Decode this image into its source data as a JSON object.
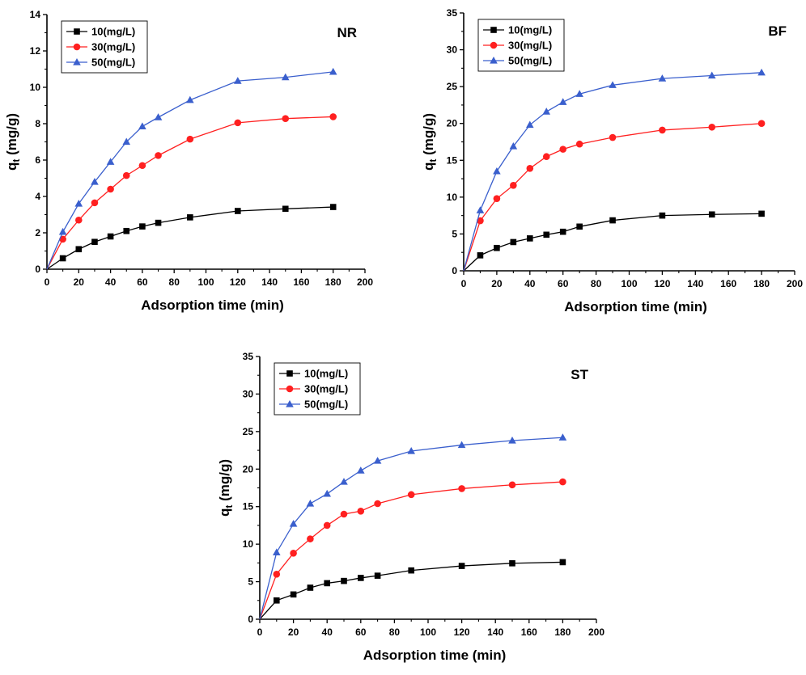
{
  "chart_data": [
    {
      "type": "line",
      "panel_label": "NR",
      "xlabel": "Adsorption time (min)",
      "ylabel_main": "q",
      "ylabel_sub": "t",
      "ylabel_unit": " (mg/g)",
      "xlim": [
        0,
        200
      ],
      "ylim": [
        0,
        14
      ],
      "xticks": [
        0,
        20,
        40,
        60,
        80,
        100,
        120,
        140,
        160,
        180,
        200
      ],
      "yticks": [
        0,
        2,
        4,
        6,
        8,
        10,
        12,
        14
      ],
      "legend_position": "top-left",
      "grid": false,
      "series": [
        {
          "name": "10(mg/L)",
          "marker": "square",
          "color": "#000000",
          "line_color": "#000000",
          "x": [
            0,
            10,
            20,
            30,
            40,
            50,
            60,
            70,
            90,
            120,
            150,
            180
          ],
          "y": [
            0,
            0.6,
            1.1,
            1.5,
            1.8,
            2.1,
            2.35,
            2.55,
            2.85,
            3.2,
            3.32,
            3.42
          ]
        },
        {
          "name": "30(mg/L)",
          "marker": "circle",
          "color": "#ff2020",
          "line_color": "#ff2020",
          "x": [
            0,
            10,
            20,
            30,
            40,
            50,
            60,
            70,
            90,
            120,
            150,
            180
          ],
          "y": [
            0,
            1.65,
            2.7,
            3.65,
            4.4,
            5.15,
            5.7,
            6.25,
            7.15,
            8.05,
            8.28,
            8.38
          ]
        },
        {
          "name": "50(mg/L)",
          "marker": "triangle",
          "color": "#3a5fcd",
          "line_color": "#3a5fcd",
          "x": [
            0,
            10,
            20,
            30,
            40,
            50,
            60,
            70,
            90,
            120,
            150,
            180
          ],
          "y": [
            0,
            2.05,
            3.6,
            4.8,
            5.9,
            7.0,
            7.85,
            8.35,
            9.3,
            10.35,
            10.55,
            10.85
          ]
        }
      ]
    },
    {
      "type": "line",
      "panel_label": "BF",
      "xlabel": "Adsorption time (min)",
      "ylabel_main": "q",
      "ylabel_sub": "t",
      "ylabel_unit": " (mg/g)",
      "xlim": [
        0,
        200
      ],
      "ylim": [
        0,
        35
      ],
      "xticks": [
        0,
        20,
        40,
        60,
        80,
        100,
        120,
        140,
        160,
        180,
        200
      ],
      "yticks": [
        0,
        5,
        10,
        15,
        20,
        25,
        30,
        35
      ],
      "legend_position": "top-left",
      "grid": false,
      "series": [
        {
          "name": "10(mg/L)",
          "marker": "square",
          "color": "#000000",
          "line_color": "#000000",
          "x": [
            0,
            10,
            20,
            30,
            40,
            50,
            60,
            70,
            90,
            120,
            150,
            180
          ],
          "y": [
            0,
            2.1,
            3.1,
            3.9,
            4.4,
            4.9,
            5.3,
            6.0,
            6.85,
            7.5,
            7.65,
            7.75
          ]
        },
        {
          "name": "30(mg/L)",
          "marker": "circle",
          "color": "#ff2020",
          "line_color": "#ff2020",
          "x": [
            0,
            10,
            20,
            30,
            40,
            50,
            60,
            70,
            90,
            120,
            150,
            180
          ],
          "y": [
            0,
            6.8,
            9.8,
            11.6,
            13.9,
            15.5,
            16.5,
            17.2,
            18.1,
            19.1,
            19.5,
            20.0
          ]
        },
        {
          "name": "50(mg/L)",
          "marker": "triangle",
          "color": "#3a5fcd",
          "line_color": "#3a5fcd",
          "x": [
            0,
            10,
            20,
            30,
            40,
            50,
            60,
            70,
            90,
            120,
            150,
            180
          ],
          "y": [
            0,
            8.2,
            13.5,
            16.9,
            19.8,
            21.6,
            22.9,
            24.0,
            25.2,
            26.1,
            26.5,
            26.9
          ]
        }
      ]
    },
    {
      "type": "line",
      "panel_label": "ST",
      "xlabel": "Adsorption time (min)",
      "ylabel_main": "q",
      "ylabel_sub": "t",
      "ylabel_unit": " (mg/g)",
      "xlim": [
        0,
        200
      ],
      "ylim": [
        0,
        35
      ],
      "xticks": [
        0,
        20,
        40,
        60,
        80,
        100,
        120,
        140,
        160,
        180,
        200
      ],
      "yticks": [
        0,
        5,
        10,
        15,
        20,
        25,
        30,
        35
      ],
      "legend_position": "top-left",
      "grid": false,
      "series": [
        {
          "name": "10(mg/L)",
          "marker": "square",
          "color": "#000000",
          "line_color": "#000000",
          "x": [
            0,
            10,
            20,
            30,
            40,
            50,
            60,
            70,
            90,
            120,
            150,
            180
          ],
          "y": [
            0,
            2.5,
            3.3,
            4.2,
            4.8,
            5.1,
            5.5,
            5.8,
            6.5,
            7.1,
            7.45,
            7.6
          ]
        },
        {
          "name": "30(mg/L)",
          "marker": "circle",
          "color": "#ff2020",
          "line_color": "#ff2020",
          "x": [
            0,
            10,
            20,
            30,
            40,
            50,
            60,
            70,
            90,
            120,
            150,
            180
          ],
          "y": [
            0,
            6.0,
            8.8,
            10.7,
            12.5,
            14.0,
            14.4,
            15.4,
            16.6,
            17.4,
            17.9,
            18.3
          ]
        },
        {
          "name": "50(mg/L)",
          "marker": "triangle",
          "color": "#3a5fcd",
          "line_color": "#3a5fcd",
          "x": [
            0,
            10,
            20,
            30,
            40,
            50,
            60,
            70,
            90,
            120,
            150,
            180
          ],
          "y": [
            0,
            8.9,
            12.7,
            15.4,
            16.7,
            18.3,
            19.8,
            21.1,
            22.4,
            23.2,
            23.8,
            24.2
          ]
        }
      ]
    }
  ]
}
